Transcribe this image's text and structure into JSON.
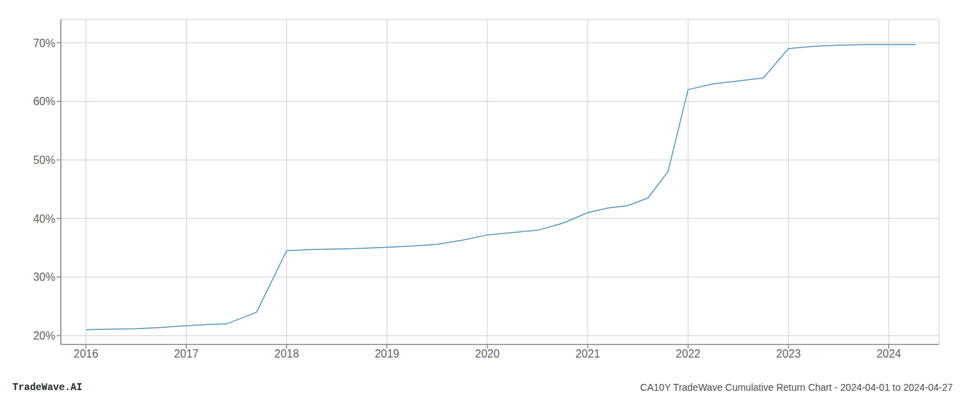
{
  "chart_data": {
    "type": "line",
    "x": [
      2016.0,
      2016.2,
      2016.5,
      2016.75,
      2017.0,
      2017.2,
      2017.4,
      2017.7,
      2018.0,
      2018.25,
      2018.5,
      2018.75,
      2019.0,
      2019.25,
      2019.5,
      2019.75,
      2020.0,
      2020.25,
      2020.5,
      2020.75,
      2021.0,
      2021.2,
      2021.4,
      2021.6,
      2021.8,
      2022.0,
      2022.25,
      2022.5,
      2022.75,
      2023.0,
      2023.25,
      2023.5,
      2023.75,
      2024.0,
      2024.27
    ],
    "values": [
      21.0,
      21.1,
      21.2,
      21.4,
      21.7,
      21.9,
      22.0,
      24.0,
      34.5,
      34.7,
      34.8,
      34.9,
      35.1,
      35.3,
      35.6,
      36.3,
      37.2,
      37.6,
      38.0,
      39.2,
      41.0,
      41.8,
      42.2,
      43.5,
      48.0,
      62.0,
      63.0,
      63.5,
      64.0,
      69.0,
      69.4,
      69.6,
      69.7,
      69.7,
      69.7
    ],
    "color": "#5b9bbf",
    "xlim": [
      2015.75,
      2024.5
    ],
    "ylim": [
      18.5,
      74
    ],
    "xticks": [
      2016,
      2017,
      2018,
      2019,
      2020,
      2021,
      2022,
      2023,
      2024
    ],
    "yticks": [
      {
        "value": 20,
        "label": "20%"
      },
      {
        "value": 30,
        "label": "30%"
      },
      {
        "value": 40,
        "label": "40%"
      },
      {
        "value": 50,
        "label": "50%"
      },
      {
        "value": 60,
        "label": "60%"
      },
      {
        "value": 70,
        "label": "70%"
      }
    ],
    "grid": true,
    "annotations": [
      "TradeWave.AI",
      "CA10Y TradeWave Cumulative Return Chart - 2024-04-01 to 2024-04-27"
    ]
  }
}
